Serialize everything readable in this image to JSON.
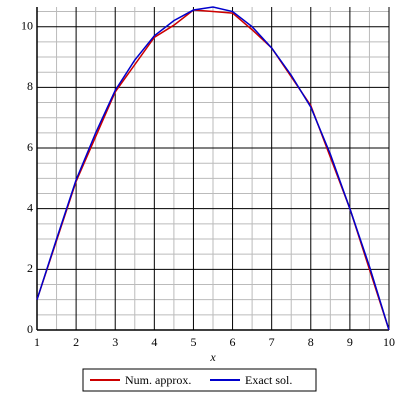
{
  "chart_data": {
    "type": "line",
    "x_label": "x",
    "xlim": [
      1,
      10
    ],
    "ylim": [
      0,
      10.65
    ],
    "xticks": [
      1,
      2,
      3,
      4,
      5,
      6,
      7,
      8,
      9,
      10
    ],
    "yticks": [
      0,
      2,
      4,
      6,
      8,
      10
    ],
    "xticks_minor": [
      1.5,
      2.5,
      3.5,
      4.5,
      5.5,
      6.5,
      7.5,
      8.5,
      9.5
    ],
    "yticks_minor": [
      0.5,
      1,
      1.5,
      2.5,
      3,
      3.5,
      4.5,
      5,
      5.5,
      6.5,
      7,
      7.5,
      8.5,
      9,
      9.5,
      10.5
    ],
    "grid": true,
    "legend": "bottom",
    "series": [
      {
        "name": "Num. approx.",
        "color": "#cc0000",
        "x": [
          1,
          2,
          3,
          4,
          4.5,
          5,
          5.5,
          6,
          6.5,
          7,
          8,
          9,
          10
        ],
        "values": [
          1,
          4.9,
          7.85,
          9.65,
          10.05,
          10.55,
          10.5,
          10.45,
          9.9,
          9.3,
          7.4,
          4.0,
          0
        ]
      },
      {
        "name": "Exact sol.",
        "color": "#0000cc",
        "x": [
          1,
          1.5,
          2,
          2.5,
          3,
          3.5,
          4,
          4.5,
          5,
          5.5,
          6,
          6.5,
          7,
          7.5,
          8,
          8.5,
          9,
          9.5,
          10
        ],
        "values": [
          1,
          3.0,
          4.95,
          6.5,
          7.9,
          8.9,
          9.7,
          10.2,
          10.55,
          10.65,
          10.5,
          10.0,
          9.3,
          8.4,
          7.35,
          5.8,
          4.0,
          2.1,
          0
        ]
      }
    ]
  }
}
